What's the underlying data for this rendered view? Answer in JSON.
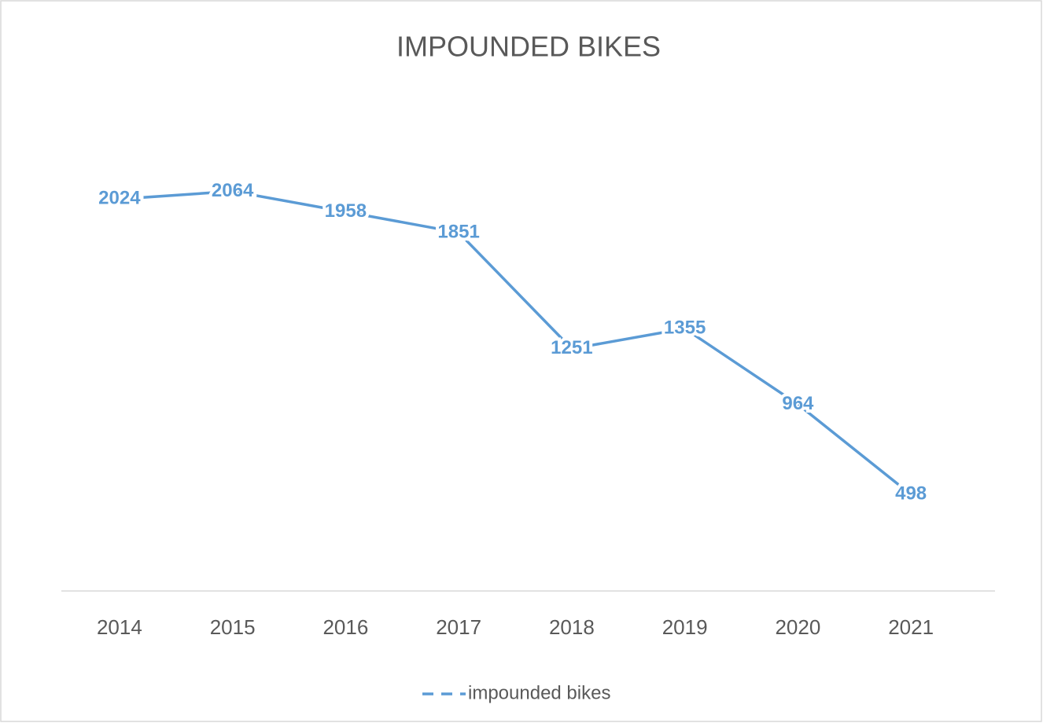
{
  "chart_data": {
    "type": "line",
    "title": "IMPOUNDED BIKES",
    "categories": [
      "2014",
      "2015",
      "2016",
      "2017",
      "2018",
      "2019",
      "2020",
      "2021"
    ],
    "series": [
      {
        "name": "impounded bikes",
        "color": "#5b9bd5",
        "values": [
          2024,
          2064,
          1958,
          1851,
          1251,
          1355,
          964,
          498
        ]
      }
    ],
    "ylim": [
      0,
      2500
    ],
    "legend": "bottom",
    "data_labels": true
  }
}
